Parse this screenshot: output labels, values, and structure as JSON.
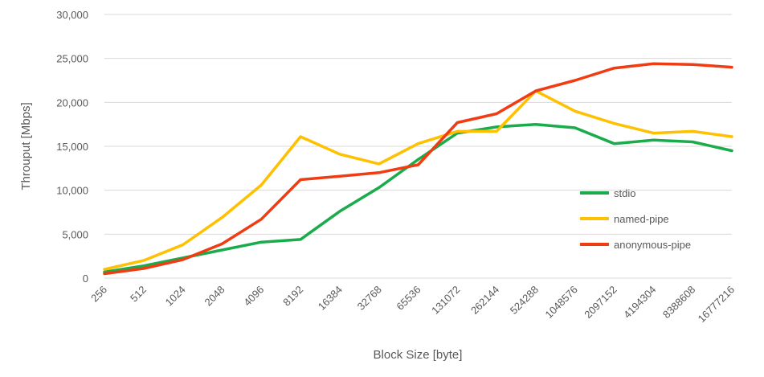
{
  "chart_data": {
    "type": "line",
    "xlabel": "Block Size [byte]",
    "ylabel": "Throuput [Mbps]",
    "ylim": [
      0,
      30000
    ],
    "yticks": [
      "0",
      "5,000",
      "10,000",
      "15,000",
      "20,000",
      "25,000",
      "30,000"
    ],
    "grid": true,
    "legend_position": "right",
    "categories": [
      "256",
      "512",
      "1024",
      "2048",
      "4096",
      "8192",
      "16384",
      "32768",
      "65536",
      "131072",
      "262144",
      "524288",
      "1048576",
      "2097152",
      "4194304",
      "8388608",
      "16777216"
    ],
    "series": [
      {
        "name": "stdio",
        "color": "#1aab4b",
        "values": [
          700,
          1400,
          2300,
          3200,
          4100,
          4400,
          7600,
          10300,
          13500,
          16500,
          17200,
          17500,
          17100,
          15300,
          15700,
          15500,
          14500
        ]
      },
      {
        "name": "named-pipe",
        "color": "#ffc000",
        "values": [
          1000,
          2000,
          3800,
          6900,
          10600,
          16100,
          14100,
          13000,
          15300,
          16700,
          16700,
          21300,
          19000,
          17600,
          16500,
          16700,
          16100
        ]
      },
      {
        "name": "anonymous-pipe",
        "color": "#f03c13",
        "values": [
          500,
          1100,
          2100,
          3900,
          6700,
          11200,
          11600,
          12000,
          12900,
          17700,
          18700,
          21300,
          22500,
          23900,
          24400,
          24300,
          24000
        ]
      }
    ]
  }
}
